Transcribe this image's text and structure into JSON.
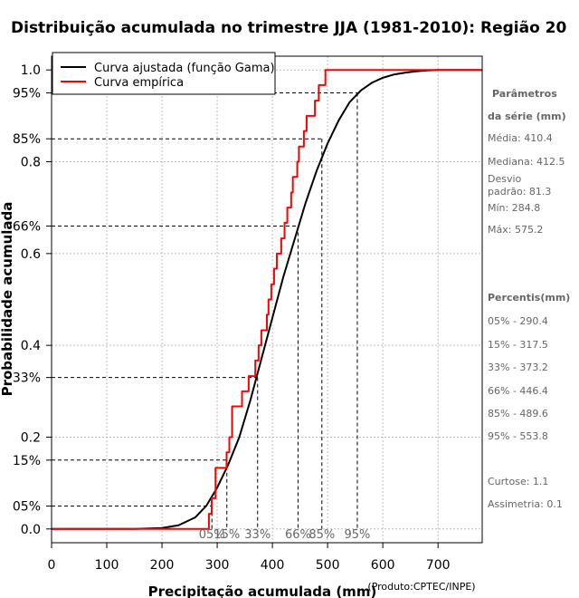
{
  "chart_data": {
    "type": "line",
    "title": "Distribuição acumulada no trimestre JJA (1981-2010): Região 20",
    "xlabel": "Precipitação acumulada (mm)",
    "ylabel": "Probabilidade acumulada",
    "xlim": [
      0,
      780
    ],
    "ylim": [
      -0.03,
      1.03
    ],
    "x_ticks": [
      0,
      100,
      200,
      300,
      400,
      500,
      600,
      700
    ],
    "y_ticks": [
      {
        "value": 0.0,
        "label": "0.0"
      },
      {
        "value": 0.05,
        "label": "05%"
      },
      {
        "value": 0.15,
        "label": "15%"
      },
      {
        "value": 0.2,
        "label": "0.2"
      },
      {
        "value": 0.33,
        "label": "33%"
      },
      {
        "value": 0.4,
        "label": "0.4"
      },
      {
        "value": 0.6,
        "label": "0.6"
      },
      {
        "value": 0.66,
        "label": "66%"
      },
      {
        "value": 0.8,
        "label": "0.8"
      },
      {
        "value": 0.85,
        "label": "85%"
      },
      {
        "value": 0.95,
        "label": "95%"
      },
      {
        "value": 1.0,
        "label": "1.0"
      }
    ],
    "grid_x": [
      0,
      100,
      200,
      300,
      400,
      500,
      600,
      700
    ],
    "grid_y": [
      0.0,
      0.2,
      0.4,
      0.6,
      0.8,
      1.0
    ],
    "legend": {
      "position": "top-left",
      "entries": [
        {
          "name": "Curva ajustada (função Gama)",
          "color": "#000000"
        },
        {
          "name": "Curva empírica",
          "color": "#ff0000"
        }
      ]
    },
    "series": [
      {
        "name": "Curva ajustada (função Gama)",
        "color": "#000000",
        "x": [
          0,
          150,
          200,
          230,
          260,
          280,
          300,
          320,
          340,
          360,
          380,
          400,
          420,
          440,
          460,
          480,
          500,
          520,
          540,
          560,
          580,
          600,
          620,
          640,
          660,
          680,
          700,
          780
        ],
        "y": [
          0.0,
          0.0,
          0.002,
          0.008,
          0.025,
          0.05,
          0.09,
          0.14,
          0.2,
          0.28,
          0.37,
          0.46,
          0.55,
          0.63,
          0.71,
          0.78,
          0.84,
          0.89,
          0.93,
          0.955,
          0.972,
          0.983,
          0.99,
          0.994,
          0.997,
          0.999,
          1.0,
          1.0
        ]
      },
      {
        "name": "Curva empírica",
        "color": "#ff0000",
        "x": [
          0,
          285,
          290,
          297,
          312,
          317,
          322,
          327,
          345,
          357,
          369,
          375,
          380,
          390,
          393,
          398,
          403,
          408,
          416,
          422,
          427,
          434,
          437,
          445,
          448,
          457,
          462,
          477,
          484,
          496,
          501,
          512,
          553,
          560,
          570,
          575,
          780
        ],
        "y": [
          0.0,
          0.033,
          0.067,
          0.133,
          0.133,
          0.167,
          0.2,
          0.267,
          0.3,
          0.333,
          0.367,
          0.4,
          0.433,
          0.467,
          0.5,
          0.533,
          0.567,
          0.6,
          0.633,
          0.667,
          0.7,
          0.733,
          0.767,
          0.8,
          0.833,
          0.867,
          0.9,
          0.933,
          0.967,
          1.0,
          1.0,
          1.0,
          1.0,
          1.0,
          1.0,
          1.0,
          1.0
        ]
      }
    ],
    "percentiles": [
      {
        "label": "05%",
        "x": 290.4,
        "p": 0.05
      },
      {
        "label": "15%",
        "x": 317.5,
        "p": 0.15
      },
      {
        "label": "33%",
        "x": 373.2,
        "p": 0.33
      },
      {
        "label": "66%",
        "x": 446.4,
        "p": 0.66
      },
      {
        "label": "85%",
        "x": 489.6,
        "p": 0.85
      },
      {
        "label": "95%",
        "x": 553.8,
        "p": 0.95
      }
    ],
    "side_panel": {
      "params_header": [
        "Parâmetros",
        "da série (mm)"
      ],
      "stats": [
        "Média: 410.4",
        "Mediana: 412.5",
        "Desvio",
        "padrão: 81.3",
        "Mín: 284.8",
        "Máx: 575.2"
      ],
      "percentis_header": "Percentis(mm)",
      "percentis": [
        "05% - 290.4",
        "15% - 317.5",
        "33% - 373.2",
        "66% - 446.4",
        "85% - 489.6",
        "95% - 553.8"
      ],
      "extra": [
        "Curtose: 1.1",
        "Assimetria: 0.1"
      ]
    },
    "credit": "(Produto:CPTEC/INPE)"
  }
}
